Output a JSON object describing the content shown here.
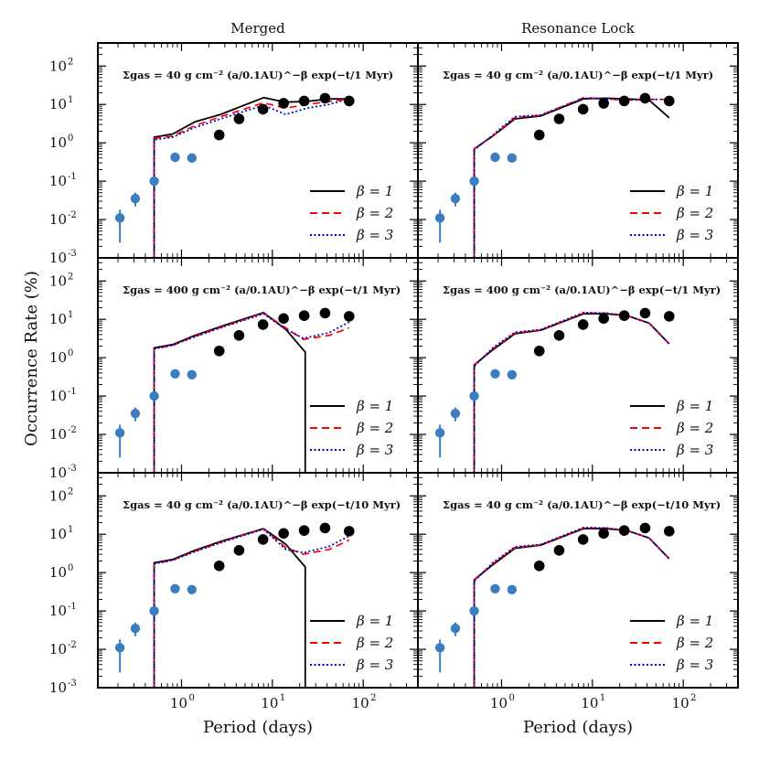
{
  "figure": {
    "y_axis_label": "Occurrence Rate (%)",
    "x_axis_label": "Period (days)",
    "column_titles": [
      "Merged",
      "Resonance Lock"
    ],
    "y_tick_labels": [
      {
        "base": "10",
        "exp": "-3"
      },
      {
        "base": "10",
        "exp": "-2"
      },
      {
        "base": "10",
        "exp": "-1"
      },
      {
        "base": "10",
        "exp": "0"
      },
      {
        "base": "10",
        "exp": "1"
      },
      {
        "base": "10",
        "exp": "2"
      }
    ],
    "x_tick_labels": [
      {
        "base": "10",
        "exp": "0"
      },
      {
        "base": "10",
        "exp": "1"
      },
      {
        "base": "10",
        "exp": "2"
      }
    ],
    "legend_entries": [
      "β = 1",
      "β = 2",
      "β = 3"
    ],
    "annotations": [
      "Σgas = 40 g cm⁻² (a/0.1AU)^−β exp(−t/1 Myr)",
      "Σgas = 400 g cm⁻² (a/0.1AU)^−β exp(−t/1 Myr)",
      "Σgas = 40 g cm⁻² (a/0.1AU)^−β exp(−t/10 Myr)"
    ],
    "colors": {
      "beta1": "#000000",
      "beta2": "#ff0000",
      "beta3": "#0000cc",
      "blue_points": "#3a7ebf",
      "black_points": "#000000"
    }
  },
  "chart_data": [
    {
      "type": "line",
      "panel": "Merged, row 1",
      "title": "Merged",
      "xlabel": "",
      "ylabel": "",
      "xscale": "log",
      "yscale": "log",
      "xlim": [
        0.12,
        400
      ],
      "ylim": [
        0.001,
        400
      ],
      "legend": "bottom-right",
      "series": [
        {
          "name": "β = 1",
          "style": "solid",
          "x": [
            0.5,
            0.5,
            0.8,
            1.4,
            2.7,
            8.0,
            14.0,
            24.0,
            42.0,
            70.0
          ],
          "y": [
            0.001,
            1.4,
            1.7,
            3.5,
            5.5,
            15.0,
            11.5,
            12.0,
            14.0,
            14.0
          ]
        },
        {
          "name": "β = 2",
          "style": "dashed",
          "x": [
            0.5,
            0.5,
            0.8,
            1.4,
            2.7,
            8.0,
            14.0,
            24.0,
            42.0,
            70.0
          ],
          "y": [
            0.001,
            1.3,
            1.5,
            2.8,
            4.8,
            11.0,
            8.0,
            10.0,
            12.0,
            14.0
          ]
        },
        {
          "name": "β = 3",
          "style": "dotted",
          "x": [
            0.5,
            0.5,
            0.8,
            1.4,
            2.7,
            8.0,
            14.0,
            24.0,
            42.0,
            70.0
          ],
          "y": [
            0.001,
            1.2,
            1.4,
            2.5,
            4.2,
            9.5,
            5.5,
            8.0,
            10.0,
            14.0
          ]
        }
      ],
      "observed_points": [
        {
          "x": 0.21,
          "y": 0.011,
          "err_low": 0.0025,
          "err_high": 0.018
        },
        {
          "x": 0.31,
          "y": 0.035,
          "err_low": 0.022,
          "err_high": 0.05
        },
        {
          "x": 0.5,
          "y": 0.1,
          "err_low": 0.08,
          "err_high": 0.13
        },
        {
          "x": 0.85,
          "y": 0.42
        },
        {
          "x": 1.3,
          "y": 0.4
        },
        {
          "x": 2.6,
          "y": 1.6
        },
        {
          "x": 4.3,
          "y": 4.2
        },
        {
          "x": 7.9,
          "y": 7.5
        },
        {
          "x": 13.3,
          "y": 10.7
        },
        {
          "x": 22.4,
          "y": 12.3
        },
        {
          "x": 38.0,
          "y": 14.5
        },
        {
          "x": 70.0,
          "y": 12.3
        }
      ]
    },
    {
      "type": "line",
      "panel": "Resonance Lock, row 1",
      "title": "Resonance Lock",
      "xlabel": "",
      "ylabel": "",
      "xscale": "log",
      "yscale": "log",
      "xlim": [
        0.12,
        400
      ],
      "ylim": [
        0.001,
        400
      ],
      "legend": "bottom-right",
      "series": [
        {
          "name": "β = 1",
          "style": "solid",
          "x": [
            0.5,
            0.5,
            0.8,
            1.4,
            2.7,
            8.0,
            14.0,
            24.0,
            42.0,
            70.0
          ],
          "y": [
            0.001,
            0.7,
            1.5,
            4.2,
            5.0,
            14.0,
            14.5,
            14.0,
            13.0,
            4.5
          ]
        },
        {
          "name": "β = 2",
          "style": "dashed",
          "x": [
            0.5,
            0.5,
            0.8,
            1.4,
            2.7,
            8.0,
            14.0,
            24.0,
            42.0,
            70.0
          ],
          "y": [
            0.001,
            0.7,
            1.5,
            4.5,
            5.2,
            15.0,
            14.0,
            13.0,
            13.5,
            13.5
          ]
        },
        {
          "name": "β = 3",
          "style": "dotted",
          "x": [
            0.5,
            0.5,
            0.8,
            1.4,
            2.7,
            8.0,
            14.0,
            24.0,
            42.0,
            70.0
          ],
          "y": [
            0.001,
            0.65,
            1.6,
            4.8,
            5.3,
            14.5,
            14.0,
            13.0,
            13.5,
            13.5
          ]
        }
      ],
      "observed_points": [
        {
          "x": 0.21,
          "y": 0.011,
          "err_low": 0.0025,
          "err_high": 0.018
        },
        {
          "x": 0.31,
          "y": 0.035,
          "err_low": 0.022,
          "err_high": 0.05
        },
        {
          "x": 0.5,
          "y": 0.1,
          "err_low": 0.08,
          "err_high": 0.13
        },
        {
          "x": 0.85,
          "y": 0.42
        },
        {
          "x": 1.3,
          "y": 0.4
        },
        {
          "x": 2.6,
          "y": 1.6
        },
        {
          "x": 4.3,
          "y": 4.2
        },
        {
          "x": 7.9,
          "y": 7.5
        },
        {
          "x": 13.3,
          "y": 10.7
        },
        {
          "x": 22.4,
          "y": 12.3
        },
        {
          "x": 38.0,
          "y": 14.5
        },
        {
          "x": 70.0,
          "y": 12.3
        }
      ]
    },
    {
      "type": "line",
      "panel": "Merged, row 2",
      "title": "",
      "xlabel": "",
      "ylabel": "Occurrence Rate (%)",
      "xscale": "log",
      "yscale": "log",
      "xlim": [
        0.12,
        400
      ],
      "ylim": [
        0.001,
        400
      ],
      "legend": "bottom-right",
      "series": [
        {
          "name": "β = 1",
          "style": "solid",
          "x": [
            0.5,
            0.5,
            0.8,
            1.4,
            2.7,
            8.0,
            14.0,
            23.0,
            23.0
          ],
          "y": [
            0.001,
            1.8,
            2.2,
            3.8,
            6.5,
            15.0,
            5.5,
            1.4,
            0.001
          ]
        },
        {
          "name": "β = 2",
          "style": "dashed",
          "x": [
            0.5,
            0.5,
            0.8,
            1.4,
            2.7,
            8.0,
            14.0,
            22.0,
            42.0,
            70.0
          ],
          "y": [
            0.001,
            1.7,
            2.1,
            3.6,
            6.2,
            14.5,
            6.0,
            3.0,
            3.8,
            6.0
          ]
        },
        {
          "name": "β = 3",
          "style": "dotted",
          "x": [
            0.5,
            0.5,
            0.8,
            1.4,
            2.7,
            8.0,
            14.0,
            22.0,
            42.0,
            70.0
          ],
          "y": [
            0.001,
            1.7,
            2.1,
            3.5,
            6.0,
            14.0,
            5.5,
            3.2,
            4.5,
            8.5
          ]
        }
      ],
      "observed_points": [
        {
          "x": 0.21,
          "y": 0.011,
          "err_low": 0.0025,
          "err_high": 0.018
        },
        {
          "x": 0.31,
          "y": 0.035,
          "err_low": 0.022,
          "err_high": 0.05
        },
        {
          "x": 0.5,
          "y": 0.1,
          "err_low": 0.08,
          "err_high": 0.13
        },
        {
          "x": 0.85,
          "y": 0.38
        },
        {
          "x": 1.3,
          "y": 0.36
        },
        {
          "x": 2.6,
          "y": 1.5
        },
        {
          "x": 4.3,
          "y": 3.8
        },
        {
          "x": 7.9,
          "y": 7.3
        },
        {
          "x": 13.3,
          "y": 10.5
        },
        {
          "x": 22.4,
          "y": 12.5
        },
        {
          "x": 38.0,
          "y": 14.5
        },
        {
          "x": 70.0,
          "y": 12.0
        }
      ]
    },
    {
      "type": "line",
      "panel": "Resonance Lock, row 2",
      "title": "",
      "xlabel": "",
      "ylabel": "",
      "xscale": "log",
      "yscale": "log",
      "xlim": [
        0.12,
        400
      ],
      "ylim": [
        0.001,
        400
      ],
      "legend": "bottom-right",
      "series": [
        {
          "name": "β = 1",
          "style": "solid",
          "x": [
            0.5,
            0.5,
            0.8,
            1.4,
            2.7,
            8.0,
            14.0,
            24.0,
            42.0,
            70.0
          ],
          "y": [
            0.001,
            0.65,
            1.6,
            4.2,
            5.2,
            14.0,
            14.0,
            12.5,
            8.0,
            2.3
          ]
        },
        {
          "name": "β = 2",
          "style": "dashed",
          "x": [
            0.5,
            0.5,
            0.8,
            1.4,
            2.7,
            8.0,
            14.0,
            24.0,
            42.0,
            70.0
          ],
          "y": [
            0.001,
            0.65,
            1.7,
            4.4,
            5.3,
            14.5,
            14.5,
            12.5,
            8.0,
            2.3
          ]
        },
        {
          "name": "β = 3",
          "style": "dotted",
          "x": [
            0.5,
            0.5,
            0.8,
            1.4,
            2.7,
            8.0,
            14.0,
            24.0,
            42.0,
            70.0
          ],
          "y": [
            0.001,
            0.6,
            1.8,
            4.6,
            5.4,
            15.0,
            14.5,
            12.5,
            8.0,
            2.3
          ]
        }
      ],
      "observed_points": [
        {
          "x": 0.21,
          "y": 0.011,
          "err_low": 0.0025,
          "err_high": 0.018
        },
        {
          "x": 0.31,
          "y": 0.035,
          "err_low": 0.022,
          "err_high": 0.05
        },
        {
          "x": 0.5,
          "y": 0.1,
          "err_low": 0.08,
          "err_high": 0.13
        },
        {
          "x": 0.85,
          "y": 0.38
        },
        {
          "x": 1.3,
          "y": 0.36
        },
        {
          "x": 2.6,
          "y": 1.5
        },
        {
          "x": 4.3,
          "y": 3.8
        },
        {
          "x": 7.9,
          "y": 7.3
        },
        {
          "x": 13.3,
          "y": 10.5
        },
        {
          "x": 22.4,
          "y": 12.5
        },
        {
          "x": 38.0,
          "y": 14.5
        },
        {
          "x": 70.0,
          "y": 12.0
        }
      ]
    },
    {
      "type": "line",
      "panel": "Merged, row 3",
      "title": "",
      "xlabel": "Period (days)",
      "ylabel": "",
      "xscale": "log",
      "yscale": "log",
      "xlim": [
        0.12,
        400
      ],
      "ylim": [
        0.001,
        400
      ],
      "legend": "bottom-right",
      "series": [
        {
          "name": "β = 1",
          "style": "solid",
          "x": [
            0.5,
            0.5,
            0.8,
            1.4,
            2.7,
            8.0,
            14.0,
            23.0,
            23.0
          ],
          "y": [
            0.001,
            1.8,
            2.2,
            3.8,
            6.5,
            14.0,
            5.5,
            1.4,
            0.001
          ]
        },
        {
          "name": "β = 2",
          "style": "dashed",
          "x": [
            0.5,
            0.5,
            0.8,
            1.4,
            2.7,
            8.0,
            14.0,
            22.0,
            42.0,
            70.0
          ],
          "y": [
            0.001,
            1.7,
            2.1,
            3.6,
            6.2,
            14.0,
            4.5,
            3.0,
            4.0,
            7.0
          ]
        },
        {
          "name": "β = 3",
          "style": "dotted",
          "x": [
            0.5,
            0.5,
            0.8,
            1.4,
            2.7,
            8.0,
            14.0,
            22.0,
            42.0,
            70.0
          ],
          "y": [
            0.001,
            1.7,
            2.1,
            3.5,
            6.0,
            13.5,
            4.0,
            3.3,
            4.8,
            9.0
          ]
        }
      ],
      "observed_points": [
        {
          "x": 0.21,
          "y": 0.011,
          "err_low": 0.0025,
          "err_high": 0.018
        },
        {
          "x": 0.31,
          "y": 0.035,
          "err_low": 0.022,
          "err_high": 0.05
        },
        {
          "x": 0.5,
          "y": 0.1,
          "err_low": 0.08,
          "err_high": 0.13
        },
        {
          "x": 0.85,
          "y": 0.38
        },
        {
          "x": 1.3,
          "y": 0.36
        },
        {
          "x": 2.6,
          "y": 1.5
        },
        {
          "x": 4.3,
          "y": 3.8
        },
        {
          "x": 7.9,
          "y": 7.3
        },
        {
          "x": 13.3,
          "y": 10.5
        },
        {
          "x": 22.4,
          "y": 12.5
        },
        {
          "x": 38.0,
          "y": 14.5
        },
        {
          "x": 70.0,
          "y": 12.0
        }
      ]
    },
    {
      "type": "line",
      "panel": "Resonance Lock, row 3",
      "title": "",
      "xlabel": "Period (days)",
      "ylabel": "",
      "xscale": "log",
      "yscale": "log",
      "xlim": [
        0.12,
        400
      ],
      "ylim": [
        0.001,
        400
      ],
      "legend": "bottom-right",
      "series": [
        {
          "name": "β = 1",
          "style": "solid",
          "x": [
            0.5,
            0.5,
            0.8,
            1.4,
            2.7,
            8.0,
            14.0,
            24.0,
            42.0,
            70.0
          ],
          "y": [
            0.001,
            0.65,
            1.6,
            4.3,
            5.2,
            14.0,
            14.0,
            12.5,
            8.0,
            2.3
          ]
        },
        {
          "name": "β = 2",
          "style": "dashed",
          "x": [
            0.5,
            0.5,
            0.8,
            1.4,
            2.7,
            8.0,
            14.0,
            24.0,
            42.0,
            70.0
          ],
          "y": [
            0.001,
            0.65,
            1.7,
            4.5,
            5.3,
            14.5,
            14.5,
            12.5,
            8.0,
            2.3
          ]
        },
        {
          "name": "β = 3",
          "style": "dotted",
          "x": [
            0.5,
            0.5,
            0.8,
            1.4,
            2.7,
            8.0,
            14.0,
            24.0,
            42.0,
            70.0
          ],
          "y": [
            0.001,
            0.6,
            1.8,
            4.7,
            5.4,
            15.0,
            14.5,
            12.5,
            8.0,
            2.3
          ]
        }
      ],
      "observed_points": [
        {
          "x": 0.21,
          "y": 0.011,
          "err_low": 0.0025,
          "err_high": 0.018
        },
        {
          "x": 0.31,
          "y": 0.035,
          "err_low": 0.022,
          "err_high": 0.05
        },
        {
          "x": 0.5,
          "y": 0.1,
          "err_low": 0.08,
          "err_high": 0.13
        },
        {
          "x": 0.85,
          "y": 0.38
        },
        {
          "x": 1.3,
          "y": 0.36
        },
        {
          "x": 2.6,
          "y": 1.5
        },
        {
          "x": 4.3,
          "y": 3.8
        },
        {
          "x": 7.9,
          "y": 7.3
        },
        {
          "x": 13.3,
          "y": 10.5
        },
        {
          "x": 22.4,
          "y": 12.5
        },
        {
          "x": 38.0,
          "y": 14.5
        },
        {
          "x": 70.0,
          "y": 12.0
        }
      ]
    }
  ]
}
